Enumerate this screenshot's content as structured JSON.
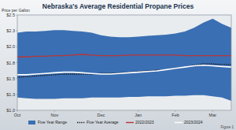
{
  "chart_data": {
    "type": "line",
    "title": "Nebraska's Average Residential Propane Prices",
    "y_label": "Price per Gallon",
    "annotation": "Figure 1",
    "categories": [
      "Oct",
      null,
      null,
      null,
      "Nov",
      null,
      null,
      null,
      null,
      "Dec",
      null,
      null,
      null,
      "Jan",
      null,
      null,
      null,
      "Feb",
      null,
      null,
      null,
      "Mar",
      null,
      null
    ],
    "ylim": [
      1.0,
      2.5
    ],
    "yticks": [
      {
        "value": 1.0,
        "label": "$1.0"
      },
      {
        "value": 1.25,
        "label": "$1.3"
      },
      {
        "value": 1.5,
        "label": "$1.5"
      },
      {
        "value": 1.75,
        "label": "$1.8"
      },
      {
        "value": 2.0,
        "label": "$2.0"
      },
      {
        "value": 2.25,
        "label": "$2.3"
      },
      {
        "value": 2.5,
        "label": "$2.5"
      }
    ],
    "grid": false,
    "legend": "bottom",
    "series": [
      {
        "name": "Five Year Range",
        "type": "area",
        "color": "#3a6fb3",
        "values": [
          2.22,
          2.24,
          2.24,
          2.25,
          2.26,
          2.26,
          2.25,
          2.24,
          2.22,
          2.18,
          2.16,
          2.15,
          2.15,
          2.16,
          2.17,
          2.18,
          2.19,
          2.21,
          2.24,
          2.3,
          2.38,
          2.44,
          2.36,
          2.3
        ],
        "low": [
          1.2,
          1.19,
          1.18,
          1.18,
          1.18,
          1.19,
          1.19,
          1.19,
          1.2,
          1.2,
          1.2,
          1.2,
          1.21,
          1.21,
          1.22,
          1.22,
          1.22,
          1.23,
          1.23,
          1.24,
          1.24,
          1.22,
          1.2,
          1.15
        ]
      },
      {
        "name": "Five Year Average",
        "type": "line",
        "line_style": "dotted",
        "color": "#111111",
        "values": [
          1.52,
          1.53,
          1.54,
          1.55,
          1.56,
          1.57,
          1.57,
          1.57,
          1.57,
          1.58,
          1.58,
          1.59,
          1.6,
          1.61,
          1.62,
          1.63,
          1.64,
          1.66,
          1.68,
          1.71,
          1.73,
          1.73,
          1.72,
          1.72
        ]
      },
      {
        "name": "2022/2023",
        "type": "line",
        "line_style": "solid",
        "color": "#b5373a",
        "values": [
          1.84,
          1.84,
          1.85,
          1.85,
          1.86,
          1.86,
          1.87,
          1.88,
          1.87,
          1.86,
          1.86,
          1.86,
          1.87,
          1.87,
          1.87,
          1.87,
          1.87,
          1.87,
          1.86,
          1.86,
          1.86,
          1.86,
          1.86,
          1.86
        ]
      },
      {
        "name": "2023/2024",
        "type": "line",
        "line_style": "solid",
        "color": "#ffffff",
        "values": [
          1.56,
          1.56,
          1.57,
          1.58,
          1.59,
          1.6,
          1.6,
          1.59,
          1.58,
          1.57,
          1.57,
          1.58,
          1.59,
          1.6,
          1.61,
          1.62,
          1.64,
          1.66,
          1.68,
          1.7,
          1.71,
          1.7,
          1.69,
          1.68
        ]
      }
    ]
  }
}
